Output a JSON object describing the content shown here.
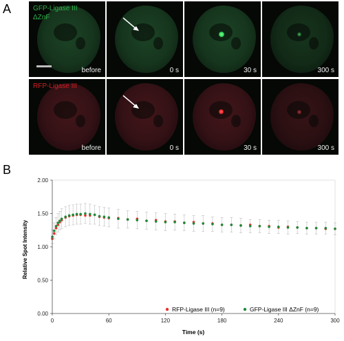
{
  "panel_a": {
    "letter": "A",
    "rows": [
      {
        "channel": "green",
        "label_line1": "GFP-Ligase III",
        "label_line2": "ΔZnF",
        "frames": [
          "before",
          "0 s",
          "30 s",
          "300 s"
        ]
      },
      {
        "channel": "red",
        "label_line1": "RFP-Ligase III",
        "label_line2": "",
        "frames": [
          "before",
          "0 s",
          "30 s",
          "300 s"
        ]
      }
    ],
    "colors": {
      "green_label": "#2fb04a",
      "red_label": "#d21e24"
    }
  },
  "panel_b": {
    "letter": "B"
  },
  "chart_data": {
    "type": "scatter",
    "xlabel": "Time (s)",
    "ylabel": "Relative Spot Intensity",
    "xlim": [
      0,
      300
    ],
    "ylim": [
      0,
      2.0
    ],
    "xticks": [
      0,
      60,
      120,
      180,
      240,
      300
    ],
    "yticks": [
      0.0,
      0.5,
      1.0,
      1.5,
      2.0
    ],
    "ytick_labels": [
      "0.00",
      "0.50",
      "1.00",
      "1.50",
      "2.00"
    ],
    "legend_position": "bottom-right",
    "error_bars": true,
    "series": [
      {
        "name": "RFP-Ligase III (n=9)",
        "color": "#e8312a",
        "x": [
          0,
          2,
          4,
          6,
          8,
          10,
          14,
          18,
          22,
          26,
          30,
          35,
          40,
          45,
          50,
          55,
          60,
          70,
          80,
          90,
          100,
          110,
          120,
          130,
          140,
          150,
          160,
          170,
          180,
          190,
          200,
          210,
          220,
          230,
          240,
          250,
          260,
          270,
          280,
          290,
          300
        ],
        "y": [
          1.12,
          1.2,
          1.28,
          1.33,
          1.37,
          1.4,
          1.44,
          1.46,
          1.47,
          1.48,
          1.48,
          1.47,
          1.47,
          1.48,
          1.45,
          1.44,
          1.43,
          1.43,
          1.41,
          1.42,
          1.39,
          1.4,
          1.38,
          1.38,
          1.36,
          1.37,
          1.35,
          1.35,
          1.33,
          1.33,
          1.32,
          1.33,
          1.31,
          1.31,
          1.29,
          1.3,
          1.29,
          1.28,
          1.28,
          1.27,
          1.27
        ]
      },
      {
        "name": "GFP-Ligase III ΔZnF (n=9)",
        "color": "#1f8a3a",
        "x": [
          0,
          2,
          4,
          6,
          8,
          10,
          14,
          18,
          22,
          26,
          30,
          35,
          40,
          45,
          50,
          55,
          60,
          70,
          80,
          90,
          100,
          110,
          120,
          130,
          140,
          150,
          160,
          170,
          180,
          190,
          200,
          210,
          220,
          230,
          240,
          250,
          260,
          270,
          280,
          290,
          300
        ],
        "y": [
          1.15,
          1.24,
          1.31,
          1.36,
          1.39,
          1.42,
          1.45,
          1.47,
          1.48,
          1.49,
          1.49,
          1.5,
          1.49,
          1.48,
          1.46,
          1.45,
          1.44,
          1.42,
          1.41,
          1.4,
          1.39,
          1.38,
          1.37,
          1.37,
          1.36,
          1.35,
          1.35,
          1.34,
          1.33,
          1.33,
          1.32,
          1.31,
          1.31,
          1.3,
          1.3,
          1.29,
          1.29,
          1.28,
          1.28,
          1.28,
          1.27
        ]
      }
    ],
    "error_bar_halfwidth": [
      0.1,
      0.12,
      0.13,
      0.14,
      0.14,
      0.15,
      0.15,
      0.15,
      0.15,
      0.15,
      0.15,
      0.15,
      0.15,
      0.14,
      0.14,
      0.14,
      0.14,
      0.14,
      0.13,
      0.13,
      0.13,
      0.13,
      0.13,
      0.12,
      0.12,
      0.12,
      0.12,
      0.11,
      0.11,
      0.11,
      0.11,
      0.1,
      0.1,
      0.1,
      0.1,
      0.1,
      0.09,
      0.09,
      0.09,
      0.09,
      0.09
    ]
  }
}
